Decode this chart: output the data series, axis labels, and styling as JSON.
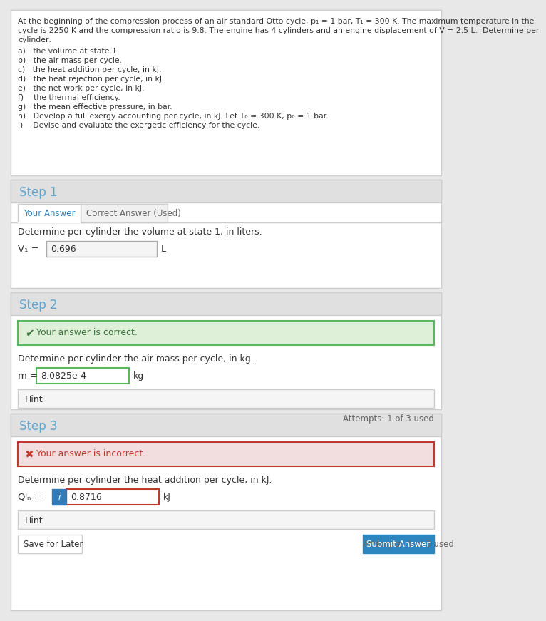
{
  "bg_color": "#e8e8e8",
  "white": "#ffffff",
  "problem_line1": "At the beginning of the compression process of an air standard Otto cycle, p₁ = 1 bar, T₁ = 300 K. The maximum temperature in the",
  "problem_line2": "cycle is 2250 K and the compression ratio is 9.8. The engine has 4 cylinders and an engine displacement of V⁤ = 2.5 L.  Determine per",
  "problem_line3": "cylinder:",
  "items": [
    "a)   the volume at state 1.",
    "b)   the air mass per cycle.",
    "c)   the heat addition per cycle, in kJ.",
    "d)   the heat rejection per cycle, in kJ.",
    "e)   the net work per cycle, in kJ.",
    "f)    the thermal efficiency.",
    "g)   the mean effective pressure, in bar.",
    "h)   Develop a full exergy accounting per cycle, in kJ. Let T₀ = 300 K, p₀ = 1 bar.",
    "i)    Devise and evaluate the exergetic efficiency for the cycle."
  ],
  "step1_label": "Step 1",
  "step1_tab1": "Your Answer",
  "step1_tab2": "Correct Answer (Used)",
  "step1_desc": "Determine per cylinder the volume at state 1, in liters.",
  "step1_var": "V₁ =",
  "step1_value": "0.696",
  "step1_unit": "L",
  "step2_label": "Step 2",
  "step2_correct_msg": "Your answer is correct.",
  "step2_check": "✔",
  "step2_desc": "Determine per cylinder the air mass per cycle, in kg.",
  "step2_var": "m =",
  "step2_value": "8.0825e-4",
  "step2_unit": "kg",
  "step2_hint": "Hint",
  "step2_attempts": "Attempts: 1 of 3 used",
  "step3_label": "Step 3",
  "step3_incorrect_msg": "Your answer is incorrect.",
  "step3_x": "✖",
  "step3_desc": "Determine per cylinder the heat addition per cycle, in kJ.",
  "step3_var": "Qᴵₙ =",
  "step3_icon_label": "i",
  "step3_value": "0.8716",
  "step3_unit": "kJ",
  "step3_hint": "Hint",
  "step3_save": "Save for Later",
  "step3_attempts": "Attempts: 1 of 3 used",
  "step3_submit": "Submit Answer",
  "blue_header": "#5ba4cf",
  "green_bg": "#dff0d8",
  "green_border": "#5cb85c",
  "green_text": "#3c763d",
  "red_bg": "#f2dede",
  "red_border": "#c0392b",
  "red_text": "#c0392b",
  "hint_bg": "#f5f5f5",
  "hint_border": "#cccccc",
  "input_bg": "#f5f5f5",
  "input_border": "#aaaaaa",
  "section_header_bg": "#e0e0e0",
  "section_border": "#cccccc",
  "content_bg": "#ffffff",
  "icon_blue_bg": "#337ab7",
  "submit_btn_bg": "#2e86c1",
  "text_dark": "#333333",
  "text_gray": "#666666",
  "tab_active_color": "#2e86c1",
  "tab_inactive_bg": "#f0f0f0"
}
